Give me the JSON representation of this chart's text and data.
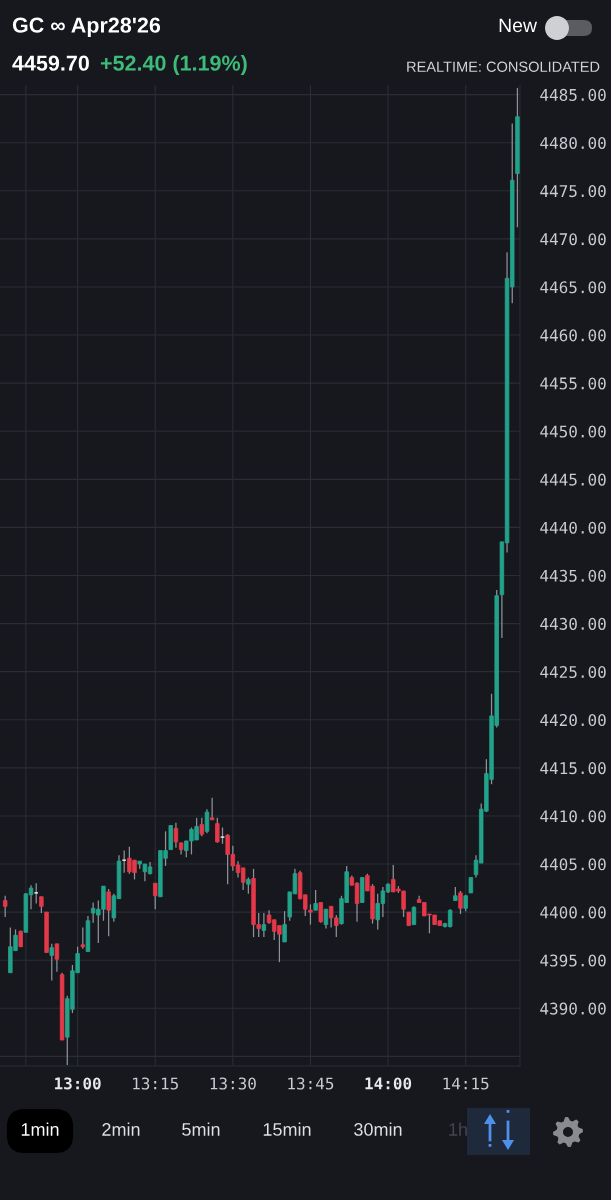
{
  "chart_data": {
    "type": "candlestick",
    "title": "GC ∞ Apr28'26",
    "subtitle": "4459.70",
    "annotations": [
      "+52.40 (1.19%)",
      "New",
      "REALTIME: CONSOLIDATED",
      "1min",
      "2min",
      "5min",
      "15min",
      "30min",
      "1h"
    ],
    "x": [
      12.7667,
      12.7833,
      12.8,
      12.8167,
      12.8333,
      12.85,
      12.8667,
      12.8833,
      12.9,
      12.9167,
      12.9333,
      12.95,
      12.9667,
      12.9833,
      13.0,
      13.0167,
      13.0333,
      13.05,
      13.0667,
      13.0833,
      13.1,
      13.1167,
      13.1333,
      13.15,
      13.1667,
      13.1833,
      13.2,
      13.2167,
      13.2333,
      13.25,
      13.2667,
      13.2833,
      13.3,
      13.3167,
      13.3333,
      13.35,
      13.3667,
      13.3833,
      13.4,
      13.4167,
      13.4333,
      13.45,
      13.4667,
      13.4833,
      13.5,
      13.5167,
      13.5333,
      13.55,
      13.5667,
      13.5833,
      13.6,
      13.6167,
      13.6333,
      13.65,
      13.6667,
      13.6833,
      13.7,
      13.7167,
      13.7333,
      13.75,
      13.7667,
      13.7833,
      13.8,
      13.8167,
      13.8333,
      13.85,
      13.8667,
      13.8833,
      13.9,
      13.9167,
      13.9333,
      13.95,
      13.9667,
      13.9833,
      14.0,
      14.0167,
      14.0333,
      14.05,
      14.0667,
      14.0833,
      14.1,
      14.1167,
      14.1333,
      14.15,
      14.1667,
      14.1833,
      14.2,
      14.2167,
      14.2333,
      14.25,
      14.2667,
      14.2833,
      14.3,
      14.3167,
      14.3333,
      14.35,
      14.3667,
      14.3833,
      14.4,
      14.4167
    ],
    "ohlc": [
      [
        4401.2,
        4401.7,
        4399.5,
        4400.6
      ],
      [
        4393.7,
        4398.4,
        4393.7,
        4396.4
      ],
      [
        4396.0,
        4398.2,
        4396.0,
        4397.6
      ],
      [
        4398.0,
        4398.1,
        4396.4,
        4396.4
      ],
      [
        4397.9,
        4402.0,
        4397.9,
        4401.9
      ],
      [
        4401.8,
        4402.8,
        4400.3,
        4402.5
      ],
      [
        4402.0,
        4403.0,
        4400.9,
        4402.0
      ],
      [
        4401.6,
        4401.6,
        4399.9,
        4400.6
      ],
      [
        4400.0,
        4400.0,
        4395.8,
        4395.8
      ],
      [
        4395.5,
        4396.7,
        4392.9,
        4396.3
      ],
      [
        4396.7,
        4396.7,
        4393.8,
        4395.1
      ],
      [
        4393.5,
        4393.7,
        4386.7,
        4386.7
      ],
      [
        4387.0,
        4391.3,
        4384.1,
        4391.0
      ],
      [
        4389.9,
        4394.5,
        4389.5,
        4393.9
      ],
      [
        4393.7,
        4396.4,
        4393.7,
        4395.7
      ],
      [
        4396.6,
        4398.4,
        4396.2,
        4396.4
      ],
      [
        4395.9,
        4399.6,
        4395.9,
        4399.1
      ],
      [
        4399.9,
        4401.0,
        4398.9,
        4400.4
      ],
      [
        4399.7,
        4401.2,
        4396.8,
        4400.3
      ],
      [
        4400.3,
        4402.7,
        4399.1,
        4402.7
      ],
      [
        4402.1,
        4402.4,
        4397.5,
        4400.2
      ],
      [
        4399.4,
        4401.9,
        4399.0,
        4401.7
      ],
      [
        4401.4,
        4405.9,
        4401.4,
        4405.3
      ],
      [
        4405.4,
        4406.4,
        4404.1,
        4405.4
      ],
      [
        4405.6,
        4406.8,
        4404.0,
        4404.2
      ],
      [
        4405.4,
        4405.4,
        4403.4,
        4404.1
      ],
      [
        4405.0,
        4405.3,
        4404.5,
        4405.3
      ],
      [
        4404.2,
        4405.0,
        4403.2,
        4405.0
      ],
      [
        4404.0,
        4405.2,
        4403.9,
        4404.7
      ],
      [
        4403.0,
        4403.0,
        4400.3,
        4401.7
      ],
      [
        4401.6,
        4406.4,
        4401.6,
        4406.4
      ],
      [
        4405.6,
        4408.4,
        4404.8,
        4406.4
      ],
      [
        4406.5,
        4409.0,
        4406.5,
        4409.0
      ],
      [
        4408.7,
        4409.3,
        4406.7,
        4407.3
      ],
      [
        4407.2,
        4407.2,
        4406.0,
        4406.5
      ],
      [
        4406.4,
        4407.4,
        4405.7,
        4407.4
      ],
      [
        4407.4,
        4408.8,
        4406.0,
        4408.6
      ],
      [
        4407.5,
        4409.8,
        4407.5,
        4408.9
      ],
      [
        4409.1,
        4409.8,
        4407.9,
        4408.1
      ],
      [
        4408.4,
        4410.7,
        4408.2,
        4410.4
      ],
      [
        4409.8,
        4411.9,
        4409.6,
        4409.6
      ],
      [
        4409.2,
        4409.8,
        4407.2,
        4407.3
      ],
      [
        4407.8,
        4408.8,
        4407.1,
        4407.8
      ],
      [
        4408.0,
        4408.1,
        4402.9,
        4406.0
      ],
      [
        4406.0,
        4406.9,
        4404.3,
        4404.8
      ],
      [
        4404.9,
        4405.3,
        4403.6,
        4404.1
      ],
      [
        4404.6,
        4404.6,
        4402.3,
        4403.1
      ],
      [
        4402.9,
        4403.6,
        4401.9,
        4403.4
      ],
      [
        4403.5,
        4404.5,
        4397.4,
        4398.7
      ],
      [
        4398.7,
        4399.9,
        4397.4,
        4398.3
      ],
      [
        4398.1,
        4399.9,
        4397.4,
        4398.7
      ],
      [
        4399.7,
        4400.2,
        4398.8,
        4398.9
      ],
      [
        4399.2,
        4399.2,
        4397.1,
        4398.0
      ],
      [
        4398.6,
        4398.6,
        4394.8,
        4397.7
      ],
      [
        4396.9,
        4400.1,
        4396.9,
        4398.7
      ],
      [
        4399.5,
        4402.1,
        4399.1,
        4402.1
      ],
      [
        4401.9,
        4404.5,
        4401.9,
        4404.0
      ],
      [
        4404.1,
        4404.3,
        4401.3,
        4401.4
      ],
      [
        4401.8,
        4401.8,
        4399.6,
        4400.3
      ],
      [
        4400.2,
        4400.8,
        4398.7,
        4400.0
      ],
      [
        4400.2,
        4402.3,
        4400.2,
        4400.9
      ],
      [
        4401.0,
        4401.0,
        4398.9,
        4399.0
      ],
      [
        4398.7,
        4400.3,
        4398.3,
        4400.3
      ],
      [
        4400.6,
        4400.6,
        4398.4,
        4399.4
      ],
      [
        4399.4,
        4399.7,
        4397.4,
        4398.6
      ],
      [
        4398.8,
        4401.7,
        4398.7,
        4401.4
      ],
      [
        4401.0,
        4404.8,
        4401.0,
        4404.2
      ],
      [
        4403.6,
        4403.8,
        4402.8,
        4402.8
      ],
      [
        4403.0,
        4403.1,
        4399.0,
        4400.9
      ],
      [
        4401.0,
        4403.6,
        4401.0,
        4403.6
      ],
      [
        4403.8,
        4404.0,
        4402.2,
        4402.2
      ],
      [
        4402.7,
        4402.9,
        4398.8,
        4399.3
      ],
      [
        4399.2,
        4401.9,
        4398.2,
        4400.9
      ],
      [
        4400.9,
        4402.6,
        4399.5,
        4402.2
      ],
      [
        4402.1,
        4403.0,
        4402.0,
        4402.9
      ],
      [
        4403.4,
        4404.9,
        4402.1,
        4402.1
      ],
      [
        4402.4,
        4402.7,
        4402.0,
        4402.2
      ],
      [
        4402.2,
        4402.2,
        4399.5,
        4400.3
      ],
      [
        4400.0,
        4400.0,
        4398.6,
        4398.6
      ],
      [
        4398.7,
        4400.6,
        4398.7,
        4400.5
      ],
      [
        4401.3,
        4401.7,
        4401.0,
        4401.0
      ],
      [
        4401.0,
        4401.0,
        4399.6,
        4399.6
      ],
      [
        4399.8,
        4399.8,
        4397.8,
        4399.7
      ],
      [
        4399.7,
        4399.7,
        4398.7,
        4398.7
      ],
      [
        4399.1,
        4399.1,
        4398.6,
        4398.6
      ],
      [
        4398.5,
        4398.9,
        4398.4,
        4398.8
      ],
      [
        4398.5,
        4400.3,
        4398.4,
        4400.2
      ],
      [
        4401.2,
        4402.6,
        4401.2,
        4401.7
      ],
      [
        4402.0,
        4402.2,
        4399.8,
        4400.4
      ],
      [
        4400.4,
        4401.8,
        4400.1,
        4401.7
      ],
      [
        4402.0,
        4403.6,
        4402.0,
        4403.6
      ],
      [
        4403.9,
        4405.9,
        4403.6,
        4405.4
      ],
      [
        4405.1,
        4411.3,
        4405.1,
        4410.7
      ],
      [
        4410.5,
        4415.9,
        4410.4,
        4414.4
      ],
      [
        4413.8,
        4422.7,
        4413.3,
        4420.4
      ],
      [
        4419.4,
        4433.5,
        4419.2,
        4432.9
      ],
      [
        4433.0,
        4438.5,
        4428.5,
        4438.5
      ],
      [
        4438.4,
        4468.6,
        4437.4,
        4465.9
      ],
      [
        4465.0,
        4482.0,
        4463.3,
        4476.1
      ],
      [
        4476.8,
        4485.7,
        4471.2,
        4482.7
      ]
    ],
    "colors": [
      "#e5394a",
      "#22a28a",
      "#22a28a",
      "#e5394a",
      "#22a28a",
      "#22a28a",
      "#ffffff",
      "#e5394a",
      "#e5394a",
      "#22a28a",
      "#e5394a",
      "#e5394a",
      "#22a28a",
      "#22a28a",
      "#22a28a",
      "#e5394a",
      "#22a28a",
      "#22a28a",
      "#22a28a",
      "#22a28a",
      "#e5394a",
      "#22a28a",
      "#22a28a",
      "#ffffff",
      "#e5394a",
      "#e5394a",
      "#22a28a",
      "#22a28a",
      "#22a28a",
      "#e5394a",
      "#22a28a",
      "#22a28a",
      "#22a28a",
      "#e5394a",
      "#e5394a",
      "#22a28a",
      "#22a28a",
      "#22a28a",
      "#e5394a",
      "#22a28a",
      "#e5394a",
      "#e5394a",
      "#ffffff",
      "#e5394a",
      "#e5394a",
      "#e5394a",
      "#e5394a",
      "#22a28a",
      "#e5394a",
      "#e5394a",
      "#22a28a",
      "#e5394a",
      "#e5394a",
      "#e5394a",
      "#22a28a",
      "#22a28a",
      "#22a28a",
      "#e5394a",
      "#e5394a",
      "#e5394a",
      "#22a28a",
      "#e5394a",
      "#22a28a",
      "#e5394a",
      "#e5394a",
      "#22a28a",
      "#22a28a",
      "#e5394a",
      "#e5394a",
      "#22a28a",
      "#e5394a",
      "#e5394a",
      "#22a28a",
      "#22a28a",
      "#22a28a",
      "#e5394a",
      "#e5394a",
      "#e5394a",
      "#e5394a",
      "#22a28a",
      "#e5394a",
      "#e5394a",
      "#e5394a",
      "#e5394a",
      "#e5394a",
      "#22a28a",
      "#22a28a",
      "#22a28a",
      "#e5394a",
      "#22a28a",
      "#22a28a",
      "#22a28a",
      "#22a28a",
      "#22a28a",
      "#22a28a",
      "#22a28a",
      "#22a28a",
      "#22a28a",
      "#22a28a",
      "#22a28a"
    ],
    "xlim": [
      12.75,
      14.425
    ],
    "xticks": [
      {
        "value": 12.8333,
        "label": null
      },
      {
        "value": 13,
        "label": "13:00"
      },
      {
        "value": 13.25,
        "label": "13:15"
      },
      {
        "value": 13.5,
        "label": "13:30"
      },
      {
        "value": 13.75,
        "label": "13:45"
      },
      {
        "value": 14,
        "label": "14:00"
      },
      {
        "value": 14.25,
        "label": "14:15"
      }
    ],
    "ylim": [
      4384,
      4486
    ],
    "yticks": [
      {
        "value": 4385,
        "label": null
      },
      {
        "value": 4390,
        "label": "4390.00"
      },
      {
        "value": 4395,
        "label": "4395.00"
      },
      {
        "value": 4400,
        "label": "4400.00"
      },
      {
        "value": 4405,
        "label": "4405.00"
      },
      {
        "value": 4410,
        "label": "4410.00"
      },
      {
        "value": 4415,
        "label": "4415.00"
      },
      {
        "value": 4420,
        "label": "4420.00"
      },
      {
        "value": 4425,
        "label": "4425.00"
      },
      {
        "value": 4430,
        "label": "4430.00"
      },
      {
        "value": 4435,
        "label": "4435.00"
      },
      {
        "value": 4440,
        "label": "4440.00"
      },
      {
        "value": 4445,
        "label": "4445.00"
      },
      {
        "value": 4450,
        "label": "4450.00"
      },
      {
        "value": 4455,
        "label": "4455.00"
      },
      {
        "value": 4460,
        "label": "4460.00"
      },
      {
        "value": 4465,
        "label": "4465.00"
      },
      {
        "value": 4470,
        "label": "4470.00"
      },
      {
        "value": 4475,
        "label": "4475.00"
      },
      {
        "value": 4480,
        "label": "4480.00"
      },
      {
        "value": 4485,
        "label": "4485.00"
      }
    ],
    "grid": true
  }
}
